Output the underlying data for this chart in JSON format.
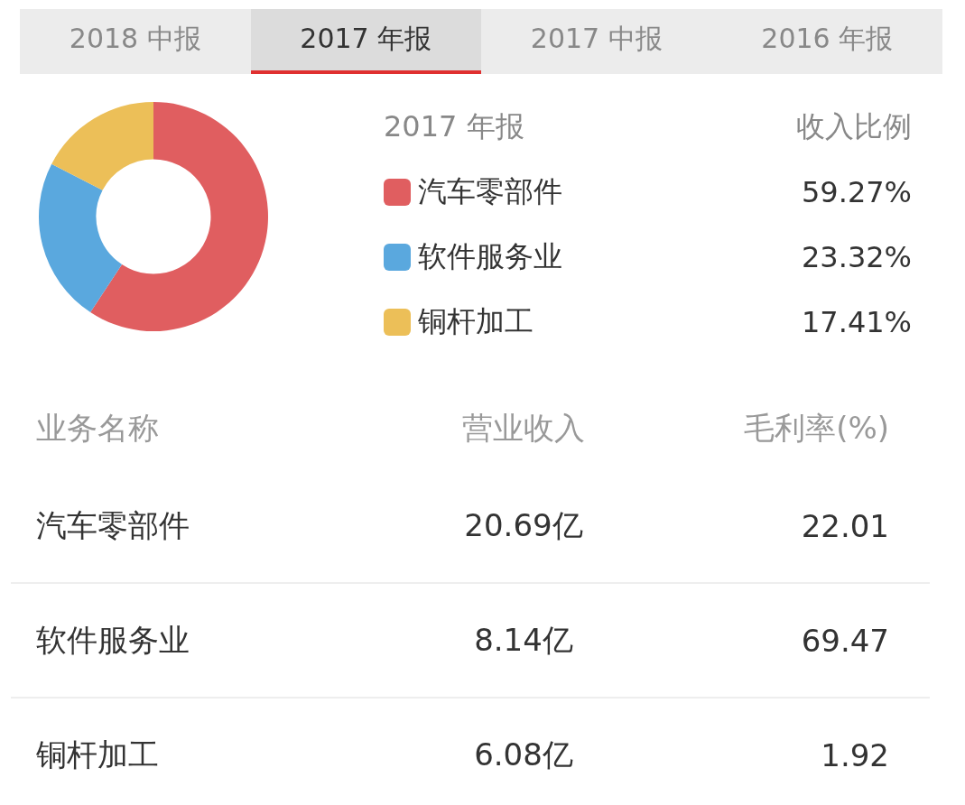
{
  "chart_data": {
    "type": "donut",
    "title": "2017 年报",
    "legend_title": "收入比例",
    "legend": "right",
    "categories": [
      "汽车零部件",
      "软件服务业",
      "铜杆加工"
    ],
    "values": [
      59.27,
      23.32,
      17.41
    ],
    "colors": [
      "#e05e60",
      "#5aa8de",
      "#ecbf58"
    ],
    "value_labels": [
      "59.27%",
      "23.32%",
      "17.41%"
    ],
    "annotations": [
      "2018 中报",
      "2017 年报",
      "2017 中报",
      "2016 年报",
      "业务名称",
      "营业收入",
      "毛利率(%)",
      "汽车零部件",
      "20.69亿",
      "22.01",
      "软件服务业",
      "8.14亿",
      "69.47",
      "铜杆加工",
      "6.08亿",
      "1.92"
    ]
  }
}
